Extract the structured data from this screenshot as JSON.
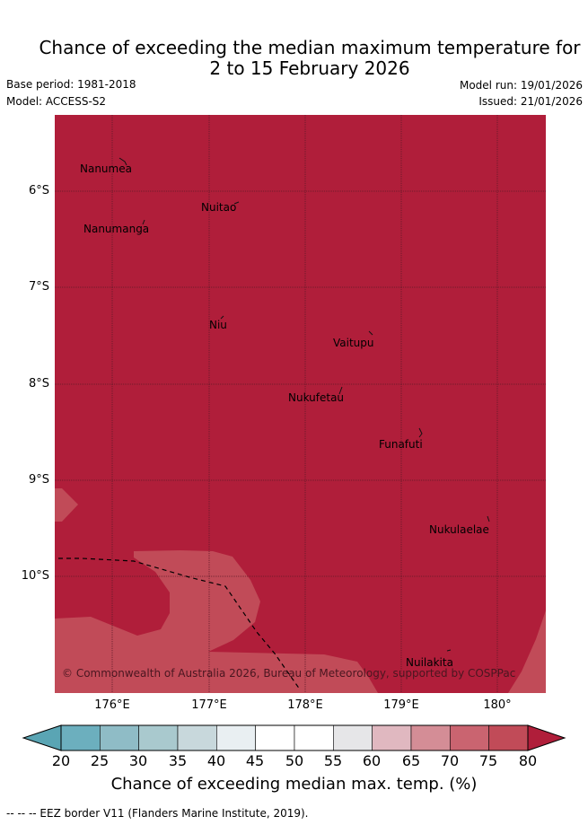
{
  "header": {
    "title_line1": "Chance of exceeding the median maximum temperature for",
    "title_line2": "2 to 15 February 2026",
    "base_period": "Base period: 1981-2018",
    "model": "Model: ACCESS-S2",
    "model_run": "Model run: 19/01/2026",
    "issued": "Issued: 21/01/2026"
  },
  "map": {
    "colors": {
      "ocean_dominant": "#b01e3a",
      "lighter_region": "#c14b58",
      "grid": "#5a1a26",
      "eez_border": "#000000"
    },
    "lat_labels": [
      "6°S",
      "7°S",
      "8°S",
      "9°S",
      "10°S"
    ],
    "lon_labels": [
      "176°E",
      "177°E",
      "178°E",
      "179°E",
      "180°"
    ],
    "places": [
      {
        "name": "Nanumea",
        "lon": 176.1,
        "lat": -5.67
      },
      {
        "name": "Nuitao",
        "lon": 177.3,
        "lat": -6.12
      },
      {
        "name": "Nanumanga",
        "lon": 176.3,
        "lat": -6.29
      },
      {
        "name": "Niu",
        "lon": 177.15,
        "lat": -7.28
      },
      {
        "name": "Vaitupu",
        "lon": 178.67,
        "lat": -7.47
      },
      {
        "name": "Nukufetau",
        "lon": 178.37,
        "lat": -8.02
      },
      {
        "name": "Funafuti",
        "lon": 179.2,
        "lat": -8.52
      },
      {
        "name": "Nukulaelae",
        "lon": 179.83,
        "lat": -9.38
      },
      {
        "name": "Nuilakita",
        "lon": 179.5,
        "lat": -10.78
      }
    ],
    "copyright": "© Commonwealth of Australia 2026, Bureau of Meteorology, supported by COSPPac"
  },
  "colorbar": {
    "ticks": [
      "20",
      "25",
      "30",
      "35",
      "40",
      "45",
      "50",
      "55",
      "60",
      "65",
      "70",
      "75",
      "80"
    ],
    "colors": [
      "#5aa5b4",
      "#6cafbe",
      "#8fbcc6",
      "#a9c9ce",
      "#c8d8dc",
      "#e9eff2",
      "#ffffff",
      "#ffffff",
      "#e6e6e8",
      "#e0b8c0",
      "#d48d96",
      "#ca6470",
      "#c14b58",
      "#b01e3a"
    ],
    "label": "Chance of exceeding median max. temp. (%)"
  },
  "footnote": "-- -- -- EEZ border V11 (Flanders Marine Institute, 2019)."
}
